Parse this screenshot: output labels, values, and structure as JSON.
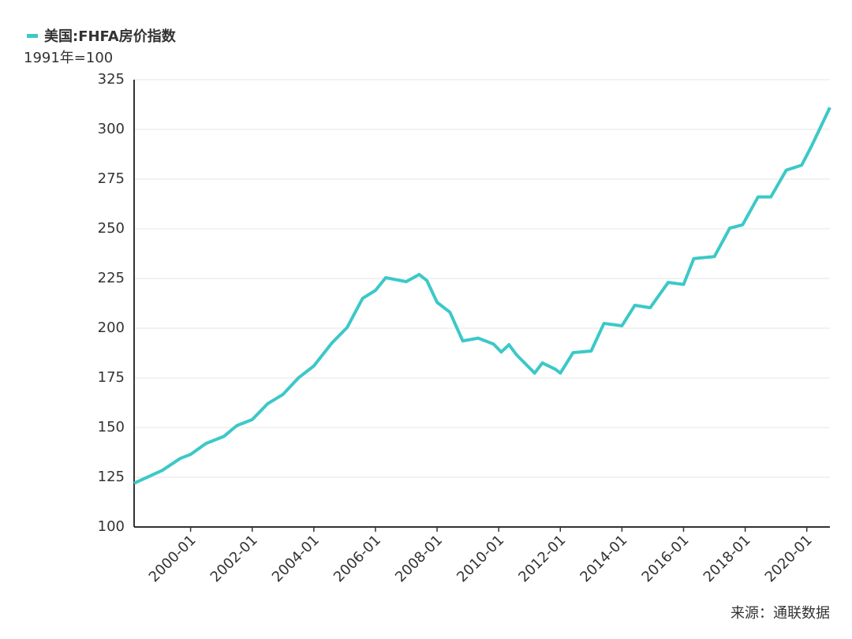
{
  "chart_data": {
    "type": "line",
    "legend": "美国:FHFA房价指数",
    "unit_label": "1991年=100",
    "source": "来源：通联数据",
    "x": [
      "1998-03",
      "1999-02",
      "1999-09",
      "2000-01",
      "2000-07",
      "2001-02",
      "2001-07",
      "2002-01",
      "2002-07",
      "2003-01",
      "2003-07",
      "2004-01",
      "2004-08",
      "2005-02",
      "2005-08",
      "2006-01",
      "2006-05",
      "2007-01",
      "2007-06",
      "2007-09",
      "2008-01",
      "2008-06",
      "2008-11",
      "2009-05",
      "2009-11",
      "2010-02",
      "2010-05",
      "2010-08",
      "2011-03",
      "2011-06",
      "2011-11",
      "2012-01",
      "2012-06",
      "2013-01",
      "2013-06",
      "2014-01",
      "2014-06",
      "2014-12",
      "2015-07",
      "2016-01",
      "2016-05",
      "2017-01",
      "2017-07",
      "2017-12",
      "2018-06",
      "2018-11",
      "2019-05",
      "2019-11",
      "2020-03",
      "2020-10"
    ],
    "series": [
      {
        "name": "美国:FHFA房价指数",
        "color": "#3cc8c8",
        "values": [
          122,
          128.5,
          134.5,
          136.5,
          142,
          145.6,
          151,
          154,
          162,
          166.7,
          175,
          181,
          192.5,
          200.4,
          215,
          219,
          225.4,
          223.4,
          227,
          224,
          213,
          208,
          193.6,
          195,
          192,
          188,
          191.7,
          186.5,
          177.4,
          182.5,
          179.4,
          177.4,
          187.7,
          188.5,
          202.4,
          201.2,
          211.5,
          210.3,
          223,
          222,
          235,
          236,
          250.3,
          252,
          266,
          266,
          279.5,
          282,
          292,
          311
        ]
      }
    ],
    "xlim": [
      "1998-03",
      "2020-10"
    ],
    "xticks": [
      "2000-01",
      "2002-01",
      "2004-01",
      "2006-01",
      "2008-01",
      "2010-01",
      "2012-01",
      "2014-01",
      "2016-01",
      "2018-01",
      "2020-01"
    ],
    "ylim": [
      100,
      325
    ],
    "yticks": [
      100,
      125,
      150,
      175,
      200,
      225,
      250,
      275,
      300,
      325
    ],
    "grid": true
  }
}
